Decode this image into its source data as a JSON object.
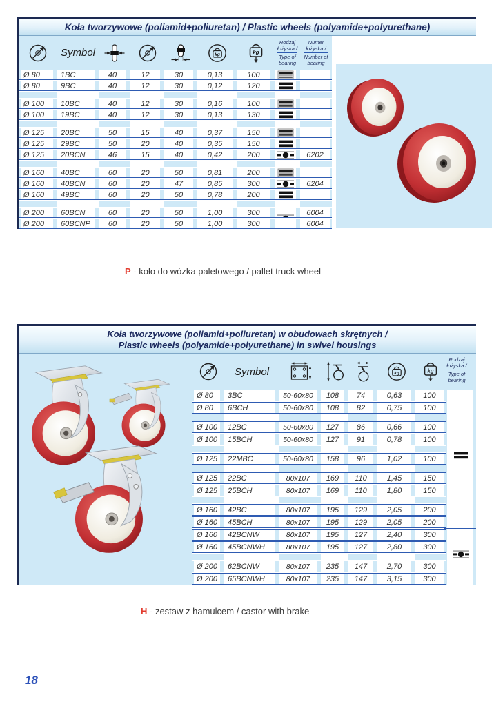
{
  "labels": {
    "kg": "kg"
  },
  "page_number": "18",
  "colors": {
    "table_bg": "#cfe9f7",
    "row_line_blue": "#2e5bb2",
    "navy_border": "#1c2a52",
    "title_navy": "#1c2a5e",
    "note_red": "#e23b2e",
    "page_number_blue": "#2b50b8",
    "wheel_red": "#c22f33",
    "wheel_center_white": "#f0ece0"
  },
  "icons": {
    "wheel_diameter": "circle-with-diagonal-arrow",
    "wheel_width": "wheel-profile-with-inward-arrows",
    "bore_diameter": "circle-with-diagonal-arrow",
    "hub_length": "wheel-profile-with-bottom-arrows",
    "weight": "kettlebell-in-circle",
    "load_capacity": "kettlebell-with-down-arrow",
    "plate_size": "plate-with-corner-holes-and-arrows",
    "total_height": "vertical-arrow-with-caster",
    "swivel_offset": "horizontal-arrow-with-caster",
    "bearing_roller": "striped-box",
    "bearing_plain": "two-black-bars",
    "bearing_ball": "ball-between-bars"
  },
  "section1": {
    "title": "Koła tworzywowe (poliamid+poliuretan) / Plastic wheels (polyamide+polyurethane)",
    "header": {
      "symbol": "Symbol",
      "bearing_type_lines": [
        "Rodzaj",
        "łożyska /",
        "Type of",
        "bearing"
      ],
      "bearing_number_lines": [
        "Numer",
        "łożyska /",
        "Number of",
        "bearing"
      ]
    },
    "rows": [
      {
        "dia": "Ø 80",
        "symbol": "1BC",
        "width": "40",
        "bore": "12",
        "hub": "30",
        "weight": "0,13",
        "load": "100",
        "bearing": "roller",
        "number": ""
      },
      {
        "dia": "Ø 80",
        "symbol": "9BC",
        "width": "40",
        "bore": "12",
        "hub": "30",
        "weight": "0,12",
        "load": "120",
        "bearing": "plain",
        "number": ""
      },
      {
        "spacer": true
      },
      {
        "dia": "Ø 100",
        "symbol": "10BC",
        "width": "40",
        "bore": "12",
        "hub": "30",
        "weight": "0,16",
        "load": "100",
        "bearing": "roller",
        "number": ""
      },
      {
        "dia": "Ø 100",
        "symbol": "19BC",
        "width": "40",
        "bore": "12",
        "hub": "30",
        "weight": "0,13",
        "load": "130",
        "bearing": "plain",
        "number": ""
      },
      {
        "spacer": true
      },
      {
        "dia": "Ø 125",
        "symbol": "20BC",
        "width": "50",
        "bore": "15",
        "hub": "40",
        "weight": "0,37",
        "load": "150",
        "bearing": "roller",
        "number": ""
      },
      {
        "dia": "Ø 125",
        "symbol": "29BC",
        "width": "50",
        "bore": "20",
        "hub": "40",
        "weight": "0,35",
        "load": "150",
        "bearing": "plain",
        "number": ""
      },
      {
        "dia": "Ø 125",
        "symbol": "20BCN",
        "width": "46",
        "bore": "15",
        "hub": "40",
        "weight": "0,42",
        "load": "200",
        "bearing": "ball",
        "number": "6202"
      },
      {
        "spacer": true
      },
      {
        "dia": "Ø 160",
        "symbol": "40BC",
        "width": "60",
        "bore": "20",
        "hub": "50",
        "weight": "0,81",
        "load": "200",
        "bearing": "roller",
        "number": ""
      },
      {
        "dia": "Ø 160",
        "symbol": "40BCN",
        "width": "60",
        "bore": "20",
        "hub": "47",
        "weight": "0,85",
        "load": "300",
        "bearing": "ball",
        "number": "6204"
      },
      {
        "dia": "Ø 160",
        "symbol": "49BC",
        "width": "60",
        "bore": "20",
        "hub": "50",
        "weight": "0,78",
        "load": "200",
        "bearing": "plain",
        "number": ""
      },
      {
        "spacer": true
      },
      {
        "dia": "Ø 200",
        "symbol": "60BCN",
        "width": "60",
        "bore": "20",
        "hub": "50",
        "weight": "1,00",
        "load": "300",
        "bearing": "ball",
        "bearing_offset": true,
        "number": "6004"
      },
      {
        "dia": "Ø 200",
        "symbol": "60BCNP",
        "width": "60",
        "bore": "20",
        "hub": "50",
        "weight": "1,00",
        "load": "300",
        "bearing": "",
        "number": "6004"
      }
    ]
  },
  "note_p": {
    "prefix": "P",
    "text": " - koło do wózka paletowego / pallet truck wheel"
  },
  "section2": {
    "title_line1": "Koła tworzywowe (poliamid+poliuretan) w obudowach skrętnych /",
    "title_line2": "Plastic wheels (polyamide+polyurethane) in swivel housings",
    "header": {
      "symbol": "Symbol",
      "bearing_type_lines": [
        "Rodzaj",
        "łożyska /",
        "Type of",
        "bearing"
      ]
    },
    "bearing_rail": [
      "plain",
      "ball"
    ],
    "rows": [
      {
        "dia": "Ø 80",
        "symbol": "3BC",
        "plate": "50-60x80",
        "height": "108",
        "offset": "74",
        "weight": "0,63",
        "load": "100"
      },
      {
        "dia": "Ø 80",
        "symbol": "6BCH",
        "plate": "50-60x80",
        "height": "108",
        "offset": "82",
        "weight": "0,75",
        "load": "100"
      },
      {
        "spacer": true
      },
      {
        "dia": "Ø 100",
        "symbol": "12BC",
        "plate": "50-60x80",
        "height": "127",
        "offset": "86",
        "weight": "0,66",
        "load": "100"
      },
      {
        "dia": "Ø 100",
        "symbol": "15BCH",
        "plate": "50-60x80",
        "height": "127",
        "offset": "91",
        "weight": "0,78",
        "load": "100"
      },
      {
        "spacer": true
      },
      {
        "dia": "Ø 125",
        "symbol": "22MBC",
        "plate": "50-60x80",
        "height": "158",
        "offset": "96",
        "weight": "1,02",
        "load": "100"
      },
      {
        "spacer": true
      },
      {
        "dia": "Ø 125",
        "symbol": "22BC",
        "plate": "80x107",
        "height": "169",
        "offset": "110",
        "weight": "1,45",
        "load": "150"
      },
      {
        "dia": "Ø 125",
        "symbol": "25BCH",
        "plate": "80x107",
        "height": "169",
        "offset": "110",
        "weight": "1,80",
        "load": "150"
      },
      {
        "spacer": true
      },
      {
        "dia": "Ø 160",
        "symbol": "42BC",
        "plate": "80x107",
        "height": "195",
        "offset": "129",
        "weight": "2,05",
        "load": "200"
      },
      {
        "dia": "Ø 160",
        "symbol": "45BCH",
        "plate": "80x107",
        "height": "195",
        "offset": "129",
        "weight": "2,05",
        "load": "200"
      },
      {
        "dia": "Ø 160",
        "symbol": "42BCNW",
        "plate": "80x107",
        "height": "195",
        "offset": "127",
        "weight": "2,40",
        "load": "300"
      },
      {
        "dia": "Ø 160",
        "symbol": "45BCNWH",
        "plate": "80x107",
        "height": "195",
        "offset": "127",
        "weight": "2,80",
        "load": "300"
      },
      {
        "spacer": true
      },
      {
        "dia": "Ø 200",
        "symbol": "62BCNW",
        "plate": "80x107",
        "height": "235",
        "offset": "147",
        "weight": "2,70",
        "load": "300"
      },
      {
        "dia": "Ø 200",
        "symbol": "65BCNWH",
        "plate": "80x107",
        "height": "235",
        "offset": "147",
        "weight": "3,15",
        "load": "300"
      }
    ]
  },
  "note_h": {
    "prefix": "H",
    "text": " - zestaw z hamulcem / castor with brake"
  }
}
